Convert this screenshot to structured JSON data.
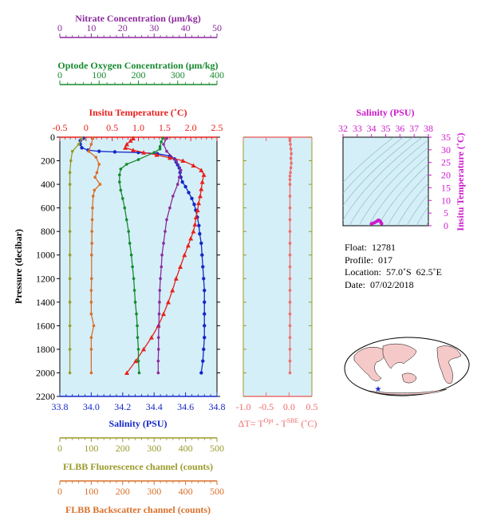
{
  "colors": {
    "nitrate": "#8b2a9b",
    "oxygen": "#178a2f",
    "temperature": "#e8201c",
    "salinity": "#1428c8",
    "fluorescence": "#9a9a2a",
    "backscatter": "#d9702a",
    "delta": "#ee6d6d",
    "plot_bg": "#d4eff8",
    "inset_salinity": "#cc1acc",
    "map_land": "#f6c9c9"
  },
  "icons": {
    "float_marker": "blue-star-icon"
  },
  "info": {
    "float": "Float:  12781",
    "profile": "Profile:  017",
    "location": "Location:  57.0˚S  62.5˚E",
    "date": "Date:  07/02/2018"
  },
  "chart_data": [
    {
      "type": "line",
      "name_key": "main-profile",
      "ylabel": "Pressure (decibar)",
      "ylim": [
        2200,
        0
      ],
      "yticks": [
        0,
        200,
        400,
        600,
        800,
        1000,
        1200,
        1400,
        1600,
        1800,
        2000,
        2200
      ],
      "grid": false,
      "axes": {
        "nitrate": {
          "label": "Nitrate Concentration (μm/kg)",
          "lim": [
            0,
            50
          ],
          "ticks": [
            0,
            10,
            20,
            30,
            40,
            50
          ],
          "position": "top-1"
        },
        "oxygen": {
          "label": "Optode Oxygen Concentration (μm/kg)",
          "lim": [
            0,
            400
          ],
          "ticks": [
            0,
            100,
            200,
            300,
            400
          ],
          "position": "top-2"
        },
        "temperature": {
          "label": "Insitu Temperature (˚C)",
          "lim": [
            -0.5,
            2.5
          ],
          "ticks": [
            -0.5,
            0,
            0.5,
            1,
            1.5,
            2,
            2.5
          ],
          "tick_labels": [
            "-0.5",
            "0",
            "0.5",
            "1.0",
            "1.5",
            "2.0",
            "2.5"
          ],
          "position": "top-3"
        },
        "salinity": {
          "label": "Salinity (PSU)",
          "lim": [
            33.8,
            34.8
          ],
          "ticks": [
            33.8,
            34.0,
            34.2,
            34.4,
            34.6,
            34.8
          ],
          "tick_labels": [
            "33.8",
            "34.0",
            "34.2",
            "34.4",
            "34.6",
            "34.8"
          ],
          "position": "bottom-1"
        },
        "fluorescence": {
          "label": "FLBB Fluorescence channel (counts)",
          "lim": [
            0,
            500
          ],
          "ticks": [
            0,
            100,
            200,
            300,
            400,
            500
          ],
          "position": "bottom-2"
        },
        "backscatter": {
          "label": "FLBB Backscatter channel (counts)",
          "lim": [
            0,
            500
          ],
          "ticks": [
            0,
            100,
            200,
            300,
            400,
            500
          ],
          "position": "bottom-3"
        }
      },
      "series": [
        {
          "name": "Salinity (PSU)",
          "axis": "salinity",
          "marker": "circle",
          "points": [
            [
              33.95,
              10
            ],
            [
              33.93,
              30
            ],
            [
              33.93,
              60
            ],
            [
              33.94,
              90
            ],
            [
              33.98,
              110
            ],
            [
              34.05,
              120
            ],
            [
              34.15,
              125
            ],
            [
              34.3,
              130
            ],
            [
              34.42,
              140
            ],
            [
              34.5,
              160
            ],
            [
              34.53,
              185
            ],
            [
              34.54,
              210
            ],
            [
              34.55,
              235
            ],
            [
              34.56,
              260
            ],
            [
              34.565,
              300
            ],
            [
              34.57,
              340
            ],
            [
              34.58,
              380
            ],
            [
              34.6,
              420
            ],
            [
              34.62,
              470
            ],
            [
              34.64,
              520
            ],
            [
              34.655,
              570
            ],
            [
              34.665,
              620
            ],
            [
              34.675,
              680
            ],
            [
              34.685,
              750
            ],
            [
              34.69,
              820
            ],
            [
              34.7,
              900
            ],
            [
              34.705,
              1000
            ],
            [
              34.71,
              1100
            ],
            [
              34.715,
              1200
            ],
            [
              34.72,
              1300
            ],
            [
              34.72,
              1400
            ],
            [
              34.72,
              1500
            ],
            [
              34.72,
              1600
            ],
            [
              34.72,
              1700
            ],
            [
              34.715,
              1800
            ],
            [
              34.71,
              1900
            ],
            [
              34.7,
              2000
            ]
          ]
        },
        {
          "name": "Insitu Temperature",
          "axis": "temperature",
          "marker": "triangle",
          "points": [
            [
              0.9,
              10
            ],
            [
              0.85,
              30
            ],
            [
              0.78,
              60
            ],
            [
              0.75,
              90
            ],
            [
              0.9,
              110
            ],
            [
              1.1,
              130
            ],
            [
              1.35,
              150
            ],
            [
              1.6,
              175
            ],
            [
              1.85,
              200
            ],
            [
              2.05,
              240
            ],
            [
              2.2,
              280
            ],
            [
              2.25,
              320
            ],
            [
              2.22,
              380
            ],
            [
              2.2,
              440
            ],
            [
              2.18,
              500
            ],
            [
              2.15,
              560
            ],
            [
              2.13,
              620
            ],
            [
              2.1,
              680
            ],
            [
              2.08,
              740
            ],
            [
              2.05,
              800
            ],
            [
              2.0,
              860
            ],
            [
              1.95,
              920
            ],
            [
              1.88,
              1000
            ],
            [
              1.8,
              1100
            ],
            [
              1.72,
              1200
            ],
            [
              1.65,
              1300
            ],
            [
              1.57,
              1400
            ],
            [
              1.48,
              1500
            ],
            [
              1.38,
              1600
            ],
            [
              1.25,
              1700
            ],
            [
              1.1,
              1800
            ],
            [
              0.95,
              1900
            ],
            [
              0.78,
              2000
            ]
          ]
        },
        {
          "name": "Optode Oxygen",
          "axis": "oxygen",
          "marker": "circle",
          "points": [
            [
              262,
              10
            ],
            [
              258,
              40
            ],
            [
              255,
              80
            ],
            [
              255,
              100
            ],
            [
              240,
              130
            ],
            [
              200,
              190
            ],
            [
              170,
              230
            ],
            [
              155,
              270
            ],
            [
              152,
              320
            ],
            [
              152,
              380
            ],
            [
              155,
              450
            ],
            [
              160,
              520
            ],
            [
              165,
              600
            ],
            [
              170,
              700
            ],
            [
              175,
              800
            ],
            [
              178,
              900
            ],
            [
              182,
              1000
            ],
            [
              185,
              1100
            ],
            [
              188,
              1200
            ],
            [
              190,
              1300
            ],
            [
              192,
              1400
            ],
            [
              195,
              1500
            ],
            [
              197,
              1600
            ],
            [
              198,
              1700
            ],
            [
              200,
              1800
            ],
            [
              200,
              1900
            ],
            [
              202,
              2000
            ]
          ]
        },
        {
          "name": "Nitrate",
          "axis": "nitrate",
          "marker": "circle",
          "points": [
            [
              34,
              10
            ],
            [
              33,
              60
            ],
            [
              34,
              120
            ],
            [
              37,
              200
            ],
            [
              38.5,
              280
            ],
            [
              38,
              340
            ],
            [
              37.5,
              400
            ],
            [
              36,
              500
            ],
            [
              35,
              600
            ],
            [
              34,
              700
            ],
            [
              33.5,
              800
            ],
            [
              33,
              900
            ],
            [
              32.5,
              1000
            ],
            [
              32.3,
              1100
            ],
            [
              32,
              1200
            ],
            [
              31.8,
              1300
            ],
            [
              31.7,
              1400
            ],
            [
              31.6,
              1500
            ],
            [
              31.5,
              1600
            ],
            [
              31.4,
              1700
            ],
            [
              31.4,
              1800
            ],
            [
              31.3,
              1900
            ],
            [
              31.3,
              2000
            ]
          ]
        },
        {
          "name": "FLBB Fluorescence",
          "axis": "fluorescence",
          "marker": "circle",
          "points": [
            [
              70,
              10
            ],
            [
              60,
              60
            ],
            [
              40,
              120
            ],
            [
              35,
              200
            ],
            [
              32,
              300
            ],
            [
              32,
              400
            ],
            [
              32,
              600
            ],
            [
              32,
              800
            ],
            [
              32,
              1000
            ],
            [
              32,
              1200
            ],
            [
              32,
              1400
            ],
            [
              32,
              1600
            ],
            [
              32,
              1800
            ],
            [
              32,
              2000
            ]
          ]
        },
        {
          "name": "FLBB Backscatter",
          "axis": "backscatter",
          "marker": "circle",
          "points": [
            [
              105,
              10
            ],
            [
              100,
              60
            ],
            [
              92,
              120
            ],
            [
              115,
              170
            ],
            [
              125,
              230
            ],
            [
              118,
              300
            ],
            [
              112,
              340
            ],
            [
              128,
              400
            ],
            [
              110,
              450
            ],
            [
              106,
              500
            ],
            [
              104,
              600
            ],
            [
              103,
              700
            ],
            [
              102,
              800
            ],
            [
              102,
              900
            ],
            [
              101,
              1000
            ],
            [
              101,
              1200
            ],
            [
              100,
              1300
            ],
            [
              100,
              1400
            ],
            [
              100,
              1500
            ],
            [
              108,
              1600
            ],
            [
              100,
              1700
            ],
            [
              100,
              1800
            ],
            [
              100,
              2000
            ]
          ]
        }
      ]
    },
    {
      "type": "line",
      "name_key": "delta-t",
      "xlabel": "ΔT= T",
      "xlabel_sup1": "Opt",
      "xlabel_mid": " - T",
      "xlabel_sup2": "SBE",
      "xlabel_end": " (˚C)",
      "xlim": [
        -1.0,
        0.5
      ],
      "ylim": [
        2200,
        0
      ],
      "xticks": [
        -1.0,
        -0.5,
        0.0,
        0.5
      ],
      "tick_labels": [
        "-1.0",
        "-0.5",
        "0.0",
        "0.5"
      ],
      "series": [
        {
          "name": "delta T",
          "points": [
            [
              0.02,
              10
            ],
            [
              0.02,
              30
            ],
            [
              0.03,
              60
            ],
            [
              0.04,
              100
            ],
            [
              0.05,
              140
            ],
            [
              0.04,
              180
            ],
            [
              0.05,
              220
            ],
            [
              0.04,
              260
            ],
            [
              0.03,
              300
            ],
            [
              0.02,
              330
            ],
            [
              0.02,
              360
            ],
            [
              0.02,
              400
            ],
            [
              0.02,
              500
            ],
            [
              0.02,
              600
            ],
            [
              0.02,
              700
            ],
            [
              0.02,
              800
            ],
            [
              0.02,
              900
            ],
            [
              0.02,
              1000
            ],
            [
              0.02,
              1100
            ],
            [
              0.02,
              1200
            ],
            [
              0.02,
              1300
            ],
            [
              0.02,
              1400
            ],
            [
              0.02,
              1500
            ],
            [
              0.02,
              1600
            ],
            [
              0.02,
              1700
            ],
            [
              0.02,
              1800
            ],
            [
              0.02,
              1900
            ],
            [
              0.02,
              2000
            ]
          ]
        }
      ]
    },
    {
      "type": "scatter",
      "name_key": "ts-inset",
      "title": "Salinity (PSU)",
      "ylabel": "Insitu Temperature (˚C)",
      "xlim": [
        32,
        38
      ],
      "ylim": [
        0,
        35
      ],
      "xticks": [
        32,
        33,
        34,
        35,
        36,
        37,
        38
      ],
      "yticks": [
        0,
        5,
        10,
        15,
        20,
        25,
        30,
        35
      ],
      "points": [
        [
          34.0,
          0.8
        ],
        [
          34.1,
          1.0
        ],
        [
          34.2,
          1.2
        ],
        [
          34.3,
          1.5
        ],
        [
          34.4,
          1.8
        ],
        [
          34.45,
          2.1
        ],
        [
          34.5,
          2.2
        ],
        [
          34.55,
          2.1
        ],
        [
          34.6,
          1.8
        ],
        [
          34.65,
          1.5
        ],
        [
          34.7,
          1.0
        ],
        [
          34.72,
          0.8
        ]
      ]
    }
  ]
}
